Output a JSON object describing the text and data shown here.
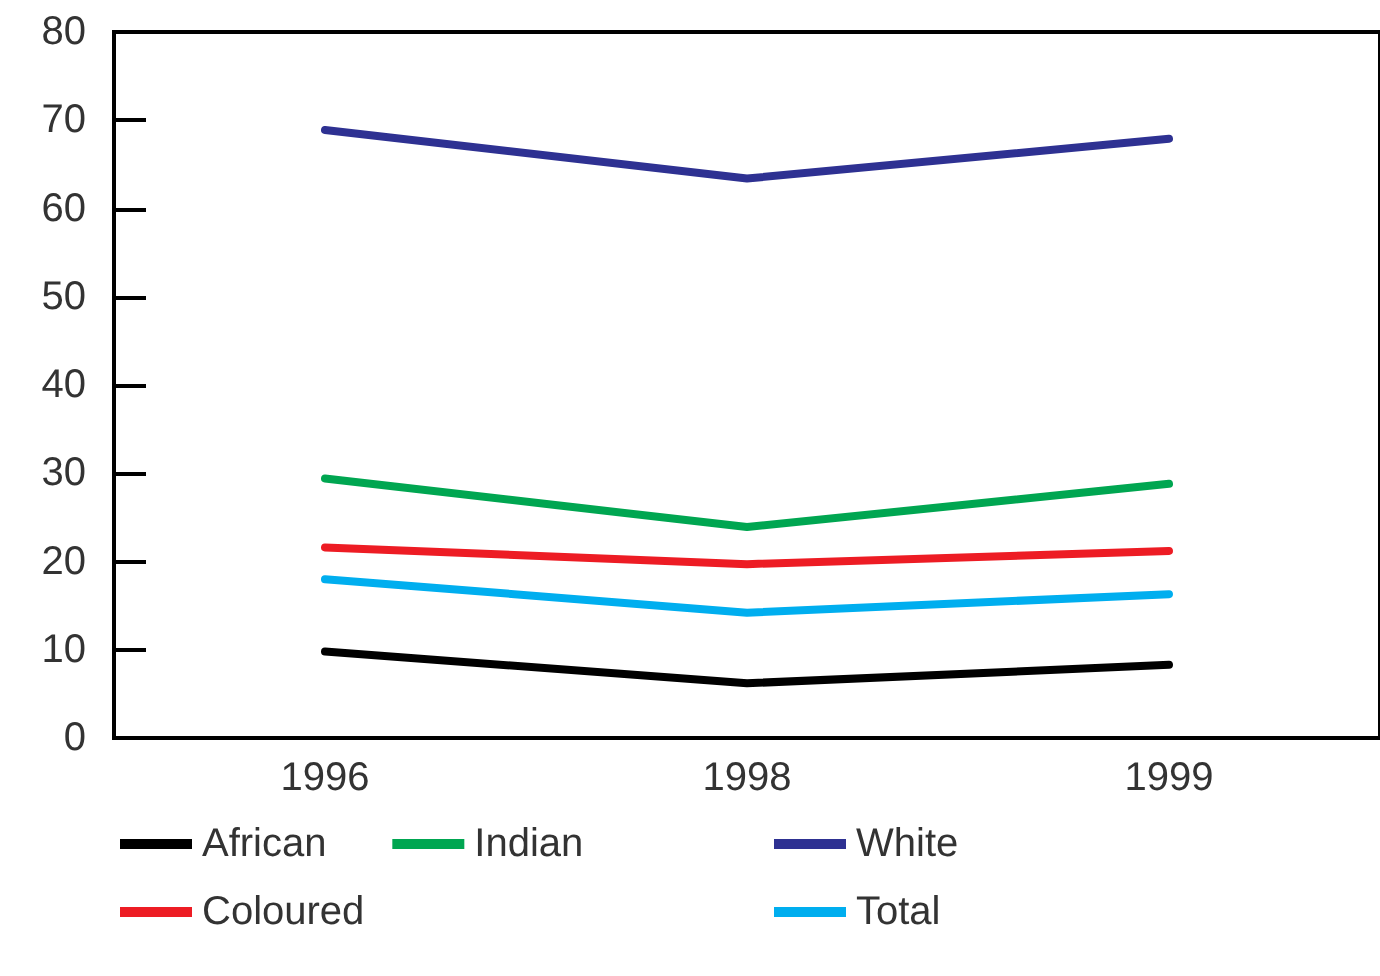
{
  "chart_data": {
    "type": "line",
    "categories": [
      "1996",
      "1998",
      "1999"
    ],
    "series": [
      {
        "name": "African",
        "color": "#000000",
        "values": [
          9.8,
          6.2,
          8.3
        ]
      },
      {
        "name": "Coloured",
        "color": "#ed1c24",
        "values": [
          21.6,
          19.7,
          21.2
        ]
      },
      {
        "name": "Indian",
        "color": "#00a651",
        "values": [
          29.4,
          23.9,
          28.8
        ]
      },
      {
        "name": "White",
        "color": "#2e3192",
        "values": [
          68.9,
          63.4,
          67.9
        ]
      },
      {
        "name": "Total",
        "color": "#00aeef",
        "values": [
          18,
          14.2,
          16.3
        ]
      }
    ],
    "ylim": [
      0,
      80
    ],
    "yticks": [
      0,
      10,
      20,
      30,
      40,
      50,
      60,
      70,
      80
    ],
    "grid": false,
    "legend": "bottom",
    "marker": "none",
    "line_style": "solid"
  }
}
